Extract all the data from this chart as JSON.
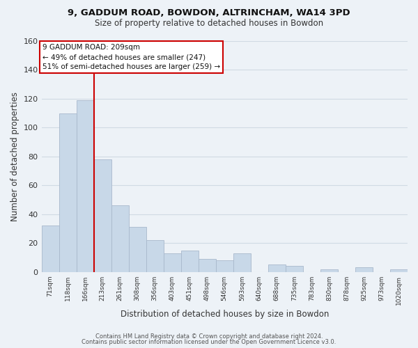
{
  "title1": "9, GADDUM ROAD, BOWDON, ALTRINCHAM, WA14 3PD",
  "title2": "Size of property relative to detached houses in Bowdon",
  "xlabel": "Distribution of detached houses by size in Bowdon",
  "ylabel": "Number of detached properties",
  "bar_labels": [
    "71sqm",
    "118sqm",
    "166sqm",
    "213sqm",
    "261sqm",
    "308sqm",
    "356sqm",
    "403sqm",
    "451sqm",
    "498sqm",
    "546sqm",
    "593sqm",
    "640sqm",
    "688sqm",
    "735sqm",
    "783sqm",
    "830sqm",
    "878sqm",
    "925sqm",
    "973sqm",
    "1020sqm"
  ],
  "bar_values": [
    32,
    110,
    119,
    78,
    46,
    31,
    22,
    13,
    15,
    9,
    8,
    13,
    0,
    5,
    4,
    0,
    2,
    0,
    3,
    0,
    2
  ],
  "bar_color": "#c8d8e8",
  "bar_edge_color": "#a8b8cc",
  "marker_color": "#cc0000",
  "annotation_text": "9 GADDUM ROAD: 209sqm\n← 49% of detached houses are smaller (247)\n51% of semi-detached houses are larger (259) →",
  "annotation_box_color": "#ffffff",
  "annotation_box_edge": "#cc0000",
  "ylim": [
    0,
    160
  ],
  "yticks": [
    0,
    20,
    40,
    60,
    80,
    100,
    120,
    140,
    160
  ],
  "footer1": "Contains HM Land Registry data © Crown copyright and database right 2024.",
  "footer2": "Contains public sector information licensed under the Open Government Licence v3.0.",
  "bg_color": "#edf2f7",
  "plot_bg_color": "#edf2f7",
  "grid_color": "#d0dae4"
}
